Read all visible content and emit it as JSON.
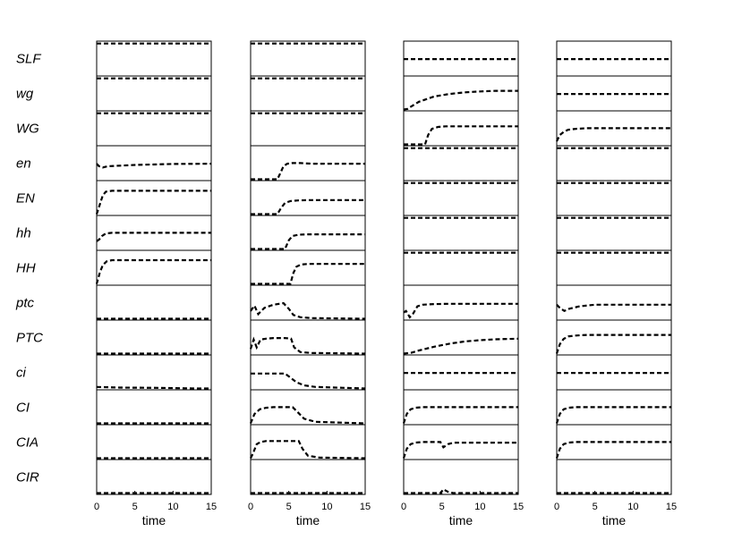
{
  "chart_data": {
    "type": "line",
    "layout": "small multiples: 13 variable rows x 4 panels, stacked traces per panel",
    "row_labels": [
      "SLF",
      "wg",
      "WG",
      "en",
      "EN",
      "hh",
      "HH",
      "ptc",
      "PTC",
      "ci",
      "CI",
      "CIA",
      "CIR"
    ],
    "xlabel": "time",
    "xlim": [
      0,
      15
    ],
    "xticks": [
      0,
      5,
      10,
      15
    ],
    "ylim": [
      0,
      1
    ],
    "grid": false,
    "line_style": "dashed",
    "panels": [
      {
        "series": [
          {
            "name": "SLF",
            "x": [
              0,
              15
            ],
            "y": [
              1,
              1
            ]
          },
          {
            "name": "wg",
            "x": [
              0,
              15
            ],
            "y": [
              1,
              1
            ]
          },
          {
            "name": "WG",
            "x": [
              0,
              15
            ],
            "y": [
              1,
              1
            ]
          },
          {
            "name": "en",
            "x": [
              0,
              0.3,
              0.8,
              1.5,
              5,
              10,
              15
            ],
            "y": [
              0.5,
              0.42,
              0.38,
              0.42,
              0.46,
              0.49,
              0.5
            ]
          },
          {
            "name": "EN",
            "x": [
              0,
              0.4,
              0.8,
              1.2,
              2,
              3,
              5,
              15
            ],
            "y": [
              0,
              0.3,
              0.6,
              0.72,
              0.75,
              0.75,
              0.75,
              0.75
            ]
          },
          {
            "name": "hh",
            "x": [
              0,
              0.3,
              0.7,
              1.2,
              2,
              3,
              15
            ],
            "y": [
              0.25,
              0.3,
              0.42,
              0.5,
              0.52,
              0.52,
              0.52
            ]
          },
          {
            "name": "HH",
            "x": [
              0,
              0.4,
              0.8,
              1.3,
              2,
              3,
              15
            ],
            "y": [
              0,
              0.35,
              0.6,
              0.72,
              0.76,
              0.76,
              0.76
            ]
          },
          {
            "name": "ptc",
            "x": [
              0,
              15
            ],
            "y": [
              0,
              0
            ]
          },
          {
            "name": "PTC",
            "x": [
              0,
              15
            ],
            "y": [
              0,
              0
            ]
          },
          {
            "name": "ci",
            "x": [
              0,
              3,
              8,
              13,
              15
            ],
            "y": [
              0.05,
              0.03,
              0.02,
              0.0,
              0.0
            ]
          },
          {
            "name": "CI",
            "x": [
              0,
              15
            ],
            "y": [
              0,
              0
            ]
          },
          {
            "name": "CIA",
            "x": [
              0,
              15
            ],
            "y": [
              0,
              0
            ]
          },
          {
            "name": "CIR",
            "x": [
              0,
              15
            ],
            "y": [
              0,
              0
            ]
          }
        ]
      },
      {
        "series": [
          {
            "name": "SLF",
            "x": [
              0,
              15
            ],
            "y": [
              1,
              1
            ]
          },
          {
            "name": "wg",
            "x": [
              0,
              15
            ],
            "y": [
              1,
              1
            ]
          },
          {
            "name": "WG",
            "x": [
              0,
              15
            ],
            "y": [
              1,
              1
            ]
          },
          {
            "name": "en",
            "x": [
              0,
              3.5,
              3.9,
              4.3,
              4.8,
              5.5,
              6.5,
              8,
              15
            ],
            "y": [
              0,
              0,
              0.2,
              0.42,
              0.5,
              0.52,
              0.52,
              0.5,
              0.5
            ]
          },
          {
            "name": "EN",
            "x": [
              0,
              3.5,
              4,
              4.5,
              5.2,
              6.2,
              7.5,
              15
            ],
            "y": [
              0,
              0,
              0.2,
              0.36,
              0.42,
              0.44,
              0.45,
              0.45
            ]
          },
          {
            "name": "hh",
            "x": [
              0,
              4.5,
              5,
              5.5,
              6.3,
              7.5,
              15
            ],
            "y": [
              0,
              0,
              0.28,
              0.42,
              0.46,
              0.47,
              0.47
            ]
          },
          {
            "name": "HH",
            "x": [
              0,
              5.2,
              5.6,
              6,
              6.6,
              7.5,
              15
            ],
            "y": [
              0,
              0,
              0.35,
              0.55,
              0.62,
              0.64,
              0.64
            ]
          },
          {
            "name": "ptc",
            "x": [
              0,
              0.5,
              1,
              1.8,
              3,
              4.3,
              5,
              5.6,
              6.5,
              8,
              15
            ],
            "y": [
              0.25,
              0.42,
              0.15,
              0.35,
              0.45,
              0.5,
              0.32,
              0.12,
              0.05,
              0.02,
              0.0
            ]
          },
          {
            "name": "PTC",
            "x": [
              0,
              0.4,
              0.8,
              1.3,
              2,
              3,
              4.5,
              5.3,
              5.7,
              6.5,
              8,
              15
            ],
            "y": [
              0.15,
              0.45,
              0.2,
              0.45,
              0.48,
              0.5,
              0.5,
              0.48,
              0.2,
              0.05,
              0.02,
              0.0
            ]
          },
          {
            "name": "ci",
            "x": [
              0,
              4.5,
              5.2,
              6,
              7,
              8.5,
              15
            ],
            "y": [
              0.48,
              0.48,
              0.35,
              0.2,
              0.1,
              0.05,
              0.0
            ]
          },
          {
            "name": "CI",
            "x": [
              0,
              0.5,
              1.2,
              2,
              3,
              5.5,
              6.2,
              7,
              8.5,
              15
            ],
            "y": [
              0,
              0.3,
              0.45,
              0.5,
              0.52,
              0.52,
              0.35,
              0.15,
              0.05,
              0.0
            ]
          },
          {
            "name": "CIA",
            "x": [
              0,
              0.3,
              0.8,
              1.3,
              2,
              6.3,
              6.8,
              7.5,
              9,
              15
            ],
            "y": [
              0,
              0.15,
              0.45,
              0.52,
              0.55,
              0.55,
              0.3,
              0.08,
              0.02,
              0.0
            ]
          },
          {
            "name": "CIR",
            "x": [
              0,
              15
            ],
            "y": [
              0,
              0
            ]
          }
        ]
      },
      {
        "series": [
          {
            "name": "SLF",
            "x": [
              0,
              15
            ],
            "y": [
              0.5,
              0.5
            ]
          },
          {
            "name": "wg",
            "x": [
              0,
              0.5,
              1,
              2,
              4,
              6,
              8,
              10,
              12,
              15
            ],
            "y": [
              0,
              0.02,
              0.1,
              0.25,
              0.42,
              0.5,
              0.55,
              0.58,
              0.6,
              0.6
            ]
          },
          {
            "name": "WG",
            "x": [
              0,
              2.8,
              3.2,
              3.7,
              4.5,
              5.5,
              7,
              15
            ],
            "y": [
              0,
              0,
              0.3,
              0.5,
              0.56,
              0.58,
              0.58,
              0.58
            ]
          },
          {
            "name": "en",
            "x": [
              0,
              15
            ],
            "y": [
              1,
              1
            ]
          },
          {
            "name": "EN",
            "x": [
              0,
              15
            ],
            "y": [
              1,
              1
            ]
          },
          {
            "name": "hh",
            "x": [
              0,
              15
            ],
            "y": [
              1,
              1
            ]
          },
          {
            "name": "HH",
            "x": [
              0,
              15
            ],
            "y": [
              1,
              1
            ]
          },
          {
            "name": "ptc",
            "x": [
              0,
              0.3,
              0.8,
              1.2,
              1.8,
              2.5,
              4,
              6,
              15
            ],
            "y": [
              0.2,
              0.25,
              0.05,
              0.15,
              0.4,
              0.45,
              0.47,
              0.48,
              0.48
            ]
          },
          {
            "name": "PTC",
            "x": [
              0,
              1,
              2,
              4,
              6,
              8,
              10,
              12,
              15
            ],
            "y": [
              0,
              0.03,
              0.1,
              0.22,
              0.32,
              0.39,
              0.43,
              0.46,
              0.48
            ]
          },
          {
            "name": "ci",
            "x": [
              0,
              15
            ],
            "y": [
              0.5,
              0.5
            ]
          },
          {
            "name": "CI",
            "x": [
              0,
              0.4,
              0.9,
              1.5,
              2.5,
              4,
              15
            ],
            "y": [
              0,
              0.3,
              0.45,
              0.5,
              0.52,
              0.52,
              0.52
            ]
          },
          {
            "name": "CIA",
            "x": [
              0,
              0.4,
              0.9,
              1.5,
              2.5,
              4.8,
              5.2,
              5.8,
              6.5,
              15
            ],
            "y": [
              0,
              0.3,
              0.45,
              0.5,
              0.52,
              0.52,
              0.35,
              0.45,
              0.5,
              0.5
            ]
          },
          {
            "name": "CIR",
            "x": [
              0,
              4.8,
              5.2,
              5.8,
              6.5,
              15
            ],
            "y": [
              0,
              0,
              0.12,
              0.04,
              0,
              0
            ]
          }
        ]
      },
      {
        "series": [
          {
            "name": "SLF",
            "x": [
              0,
              15
            ],
            "y": [
              0.5,
              0.5
            ]
          },
          {
            "name": "wg",
            "x": [
              0,
              15
            ],
            "y": [
              0.5,
              0.5
            ]
          },
          {
            "name": "WG",
            "x": [
              0,
              0.4,
              0.9,
              1.5,
              2.5,
              4,
              6,
              15
            ],
            "y": [
              0.1,
              0.3,
              0.4,
              0.47,
              0.5,
              0.52,
              0.52,
              0.52
            ]
          },
          {
            "name": "en",
            "x": [
              0,
              15
            ],
            "y": [
              1,
              1
            ]
          },
          {
            "name": "EN",
            "x": [
              0,
              15
            ],
            "y": [
              1,
              1
            ]
          },
          {
            "name": "hh",
            "x": [
              0,
              15
            ],
            "y": [
              1,
              1
            ]
          },
          {
            "name": "HH",
            "x": [
              0,
              15
            ],
            "y": [
              1,
              1
            ]
          },
          {
            "name": "ptc",
            "x": [
              0,
              0.4,
              1,
              1.6,
              3,
              5,
              15
            ],
            "y": [
              0.45,
              0.35,
              0.25,
              0.32,
              0.4,
              0.45,
              0.45
            ]
          },
          {
            "name": "PTC",
            "x": [
              0,
              0.4,
              0.9,
              1.5,
              2.5,
              4,
              7,
              15
            ],
            "y": [
              0,
              0.3,
              0.47,
              0.55,
              0.58,
              0.6,
              0.6,
              0.6
            ]
          },
          {
            "name": "ci",
            "x": [
              0,
              15
            ],
            "y": [
              0.5,
              0.5
            ]
          },
          {
            "name": "CI",
            "x": [
              0,
              0.4,
              0.9,
              1.5,
              2.5,
              4,
              15
            ],
            "y": [
              0,
              0.3,
              0.45,
              0.5,
              0.52,
              0.52,
              0.52
            ]
          },
          {
            "name": "CIA",
            "x": [
              0,
              0.4,
              0.9,
              1.5,
              2.5,
              4,
              15
            ],
            "y": [
              0,
              0.3,
              0.45,
              0.5,
              0.52,
              0.52,
              0.52
            ]
          },
          {
            "name": "CIR",
            "x": [
              0,
              15
            ],
            "y": [
              0,
              0
            ]
          }
        ]
      }
    ]
  }
}
